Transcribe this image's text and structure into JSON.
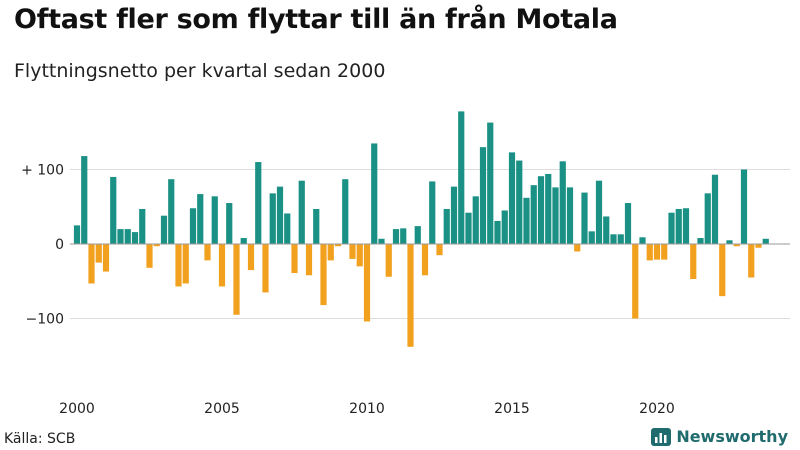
{
  "header": {
    "title": "Oftast fler som flyttar till än från Motala",
    "subtitle": "Flyttningsnetto per kvartal sedan 2000"
  },
  "footer": {
    "source": "Källa: SCB",
    "brand": "Newsworthy"
  },
  "colors": {
    "positive": "#1a9184",
    "negative": "#f2a11f",
    "grid": "#dddddd",
    "zero": "#999999"
  },
  "chart_data": {
    "type": "bar",
    "x_start": "2000-Q1",
    "values": [
      25,
      118,
      -53,
      -25,
      -37,
      90,
      20,
      20,
      16,
      47,
      -32,
      -3,
      38,
      87,
      -57,
      -53,
      48,
      67,
      -22,
      64,
      -57,
      55,
      -95,
      8,
      -35,
      110,
      -65,
      68,
      77,
      41,
      -39,
      85,
      -42,
      47,
      -82,
      -22,
      -3,
      87,
      -20,
      -30,
      -104,
      135,
      7,
      -44,
      20,
      21,
      -138,
      24,
      -42,
      84,
      -15,
      47,
      77,
      178,
      42,
      64,
      130,
      163,
      31,
      45,
      123,
      112,
      62,
      79,
      91,
      94,
      76,
      111,
      76,
      -10,
      69,
      17,
      85,
      37,
      13,
      13,
      55,
      -100,
      9,
      -22,
      -21,
      -21,
      42,
      47,
      48,
      -47,
      8,
      68,
      93,
      -70,
      5,
      -3,
      100,
      -45,
      -5,
      7
    ],
    "x_ticks": [
      "2000",
      "2005",
      "2010",
      "2015",
      "2020"
    ],
    "y_ticks": [
      {
        "value": 100,
        "label": "+ 100"
      },
      {
        "value": 0,
        "label": "0"
      },
      {
        "value": -100,
        "label": "−100"
      }
    ],
    "ylim": [
      -190,
      180
    ],
    "grid": true,
    "legend": "none"
  }
}
